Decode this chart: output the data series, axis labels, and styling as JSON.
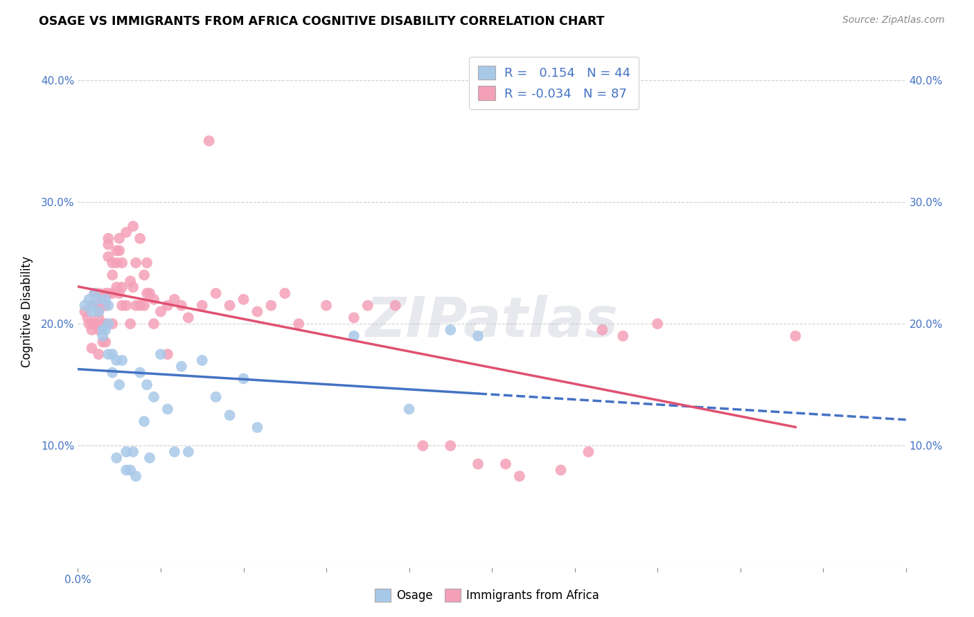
{
  "title": "OSAGE VS IMMIGRANTS FROM AFRICA COGNITIVE DISABILITY CORRELATION CHART",
  "source": "Source: ZipAtlas.com",
  "ylabel_text": "Cognitive Disability",
  "xlim": [
    0.0,
    0.6
  ],
  "ylim": [
    0.0,
    0.42
  ],
  "xticks": [
    0.0,
    0.06,
    0.12,
    0.18,
    0.24,
    0.3,
    0.36,
    0.42,
    0.48,
    0.54,
    0.6
  ],
  "xticklabels_show": {
    "0.0": "0.0%"
  },
  "yticks": [
    0.0,
    0.1,
    0.2,
    0.3,
    0.4
  ],
  "yticklabels": [
    "",
    "10.0%",
    "20.0%",
    "30.0%",
    "40.0%"
  ],
  "legend_label1": "R =   0.154   N = 44",
  "legend_label2": "R = -0.034   N = 87",
  "color_osage": "#a8c8e8",
  "color_africa": "#f4a0b8",
  "color_osage_line": "#4472c4",
  "color_africa_line": "#e05070",
  "background_color": "#ffffff",
  "grid_color": "#d0d0d0",
  "bottom_legend_label1": "Osage",
  "bottom_legend_label2": "Immigrants from Africa",
  "osage_x": [
    0.005,
    0.008,
    0.01,
    0.01,
    0.012,
    0.015,
    0.015,
    0.018,
    0.018,
    0.02,
    0.02,
    0.022,
    0.022,
    0.022,
    0.025,
    0.025,
    0.028,
    0.028,
    0.03,
    0.032,
    0.035,
    0.035,
    0.038,
    0.04,
    0.042,
    0.045,
    0.048,
    0.05,
    0.052,
    0.055,
    0.06,
    0.065,
    0.07,
    0.075,
    0.08,
    0.09,
    0.1,
    0.11,
    0.12,
    0.13,
    0.2,
    0.24,
    0.27,
    0.29
  ],
  "osage_y": [
    0.215,
    0.22,
    0.215,
    0.21,
    0.225,
    0.22,
    0.21,
    0.195,
    0.19,
    0.22,
    0.195,
    0.215,
    0.2,
    0.175,
    0.175,
    0.16,
    0.17,
    0.09,
    0.15,
    0.17,
    0.095,
    0.08,
    0.08,
    0.095,
    0.075,
    0.16,
    0.12,
    0.15,
    0.09,
    0.14,
    0.175,
    0.13,
    0.095,
    0.165,
    0.095,
    0.17,
    0.14,
    0.125,
    0.155,
    0.115,
    0.19,
    0.13,
    0.195,
    0.19
  ],
  "africa_x": [
    0.005,
    0.007,
    0.008,
    0.01,
    0.01,
    0.01,
    0.01,
    0.012,
    0.012,
    0.012,
    0.015,
    0.015,
    0.015,
    0.015,
    0.015,
    0.015,
    0.018,
    0.018,
    0.018,
    0.02,
    0.02,
    0.02,
    0.02,
    0.022,
    0.022,
    0.022,
    0.022,
    0.025,
    0.025,
    0.025,
    0.025,
    0.028,
    0.028,
    0.028,
    0.03,
    0.03,
    0.03,
    0.032,
    0.032,
    0.032,
    0.035,
    0.035,
    0.038,
    0.038,
    0.04,
    0.04,
    0.042,
    0.042,
    0.045,
    0.045,
    0.048,
    0.048,
    0.05,
    0.05,
    0.052,
    0.055,
    0.055,
    0.06,
    0.065,
    0.065,
    0.07,
    0.075,
    0.08,
    0.09,
    0.095,
    0.1,
    0.11,
    0.12,
    0.13,
    0.14,
    0.15,
    0.16,
    0.18,
    0.2,
    0.21,
    0.23,
    0.25,
    0.27,
    0.29,
    0.31,
    0.32,
    0.35,
    0.37,
    0.38,
    0.395,
    0.42,
    0.52
  ],
  "africa_y": [
    0.21,
    0.205,
    0.2,
    0.215,
    0.2,
    0.195,
    0.18,
    0.225,
    0.215,
    0.2,
    0.225,
    0.215,
    0.21,
    0.205,
    0.195,
    0.175,
    0.22,
    0.2,
    0.185,
    0.225,
    0.215,
    0.2,
    0.185,
    0.27,
    0.265,
    0.255,
    0.225,
    0.25,
    0.24,
    0.225,
    0.2,
    0.26,
    0.25,
    0.23,
    0.27,
    0.26,
    0.225,
    0.25,
    0.23,
    0.215,
    0.275,
    0.215,
    0.235,
    0.2,
    0.28,
    0.23,
    0.25,
    0.215,
    0.27,
    0.215,
    0.24,
    0.215,
    0.25,
    0.225,
    0.225,
    0.22,
    0.2,
    0.21,
    0.215,
    0.175,
    0.22,
    0.215,
    0.205,
    0.215,
    0.35,
    0.225,
    0.215,
    0.22,
    0.21,
    0.215,
    0.225,
    0.2,
    0.215,
    0.205,
    0.215,
    0.215,
    0.1,
    0.1,
    0.085,
    0.085,
    0.075,
    0.08,
    0.095,
    0.195,
    0.19,
    0.2,
    0.19
  ]
}
